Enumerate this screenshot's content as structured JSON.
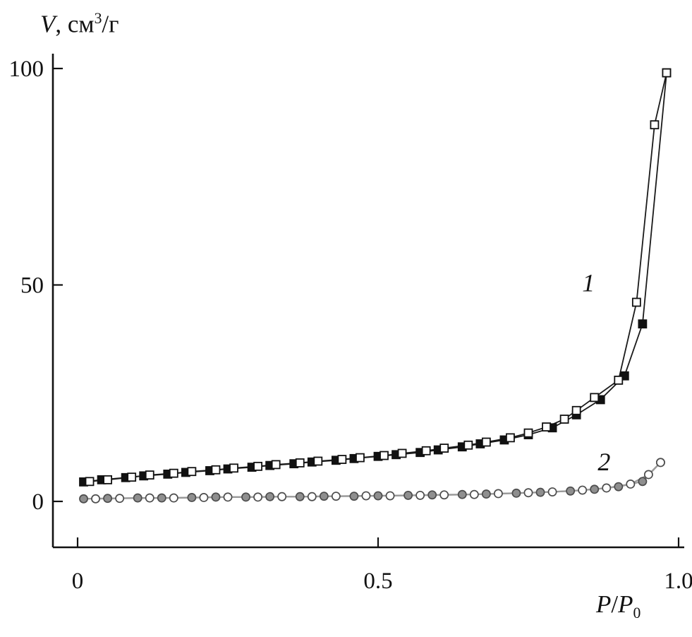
{
  "figure": {
    "ylabel_parts": {
      "var": "V",
      "rest": ", см",
      "sup": "3",
      "after": "/г"
    },
    "xlabel_parts": {
      "var1": "P",
      "slash": "/",
      "var2": "P",
      "sub": "0"
    }
  },
  "chart_data": {
    "type": "line",
    "title": "",
    "ylabel": "V, см³/г",
    "xlabel": "P/P₀",
    "xlim": [
      0,
      1.0
    ],
    "ylim": [
      0,
      100
    ],
    "xticks": [
      0,
      0.5,
      1.0
    ],
    "xtick_labels": [
      "0",
      "0.5",
      "1.0"
    ],
    "yticks": [
      0,
      50,
      100
    ],
    "ytick_labels": [
      "0",
      "50",
      "100"
    ],
    "grid": false,
    "legend": "none",
    "axis_color": "#111111",
    "annotations": [
      {
        "text": "1",
        "x": 0.85,
        "y": 48.5
      },
      {
        "text": "2",
        "x": 0.876,
        "y": 7.2
      }
    ],
    "series": [
      {
        "name": "isotherm-1-adsorption",
        "curve": "1",
        "marker": "square-filled",
        "line_color": "#1a1a1a",
        "line_width": 1.8,
        "marker_fill": "#111111",
        "marker_stroke": "#111111",
        "points": [
          [
            0.01,
            4.5
          ],
          [
            0.04,
            5.0
          ],
          [
            0.08,
            5.5
          ],
          [
            0.11,
            5.9
          ],
          [
            0.15,
            6.3
          ],
          [
            0.18,
            6.7
          ],
          [
            0.22,
            7.1
          ],
          [
            0.25,
            7.5
          ],
          [
            0.29,
            7.9
          ],
          [
            0.32,
            8.3
          ],
          [
            0.36,
            8.7
          ],
          [
            0.39,
            9.1
          ],
          [
            0.43,
            9.5
          ],
          [
            0.46,
            9.9
          ],
          [
            0.5,
            10.4
          ],
          [
            0.53,
            10.8
          ],
          [
            0.57,
            11.3
          ],
          [
            0.6,
            11.9
          ],
          [
            0.64,
            12.6
          ],
          [
            0.67,
            13.3
          ],
          [
            0.71,
            14.2
          ],
          [
            0.75,
            15.4
          ],
          [
            0.79,
            17.0
          ],
          [
            0.83,
            20.0
          ],
          [
            0.87,
            23.5
          ],
          [
            0.91,
            29.0
          ],
          [
            0.94,
            41.0
          ],
          [
            0.98,
            99.0
          ]
        ]
      },
      {
        "name": "isotherm-1-desorption",
        "curve": "1",
        "marker": "square-open",
        "line_color": "#1a1a1a",
        "line_width": 1.8,
        "marker_fill": "#ffffff",
        "marker_stroke": "#111111",
        "points": [
          [
            0.98,
            99.0
          ],
          [
            0.96,
            87.0
          ],
          [
            0.93,
            46.0
          ],
          [
            0.9,
            28.0
          ],
          [
            0.86,
            24.0
          ],
          [
            0.83,
            21.0
          ],
          [
            0.81,
            19.0
          ],
          [
            0.78,
            17.2
          ],
          [
            0.75,
            15.8
          ],
          [
            0.72,
            14.7
          ],
          [
            0.68,
            13.7
          ],
          [
            0.65,
            13.0
          ],
          [
            0.61,
            12.3
          ],
          [
            0.58,
            11.7
          ],
          [
            0.54,
            11.1
          ],
          [
            0.51,
            10.6
          ],
          [
            0.47,
            10.1
          ],
          [
            0.44,
            9.7
          ],
          [
            0.4,
            9.3
          ],
          [
            0.37,
            8.9
          ],
          [
            0.33,
            8.5
          ],
          [
            0.3,
            8.1
          ],
          [
            0.26,
            7.7
          ],
          [
            0.23,
            7.3
          ],
          [
            0.19,
            6.9
          ],
          [
            0.16,
            6.5
          ],
          [
            0.12,
            6.1
          ],
          [
            0.09,
            5.6
          ],
          [
            0.05,
            5.0
          ],
          [
            0.02,
            4.6
          ]
        ]
      },
      {
        "name": "isotherm-2-adsorption",
        "curve": "2",
        "marker": "circle-filled",
        "line_color": "#999999",
        "line_width": 2.2,
        "marker_fill": "#8f8f8f",
        "marker_stroke": "#4d4d4d",
        "points": [
          [
            0.01,
            0.6
          ],
          [
            0.05,
            0.7
          ],
          [
            0.1,
            0.8
          ],
          [
            0.14,
            0.8
          ],
          [
            0.19,
            0.9
          ],
          [
            0.23,
            1.0
          ],
          [
            0.28,
            1.0
          ],
          [
            0.32,
            1.1
          ],
          [
            0.37,
            1.1
          ],
          [
            0.41,
            1.2
          ],
          [
            0.46,
            1.2
          ],
          [
            0.5,
            1.3
          ],
          [
            0.55,
            1.4
          ],
          [
            0.59,
            1.5
          ],
          [
            0.64,
            1.6
          ],
          [
            0.68,
            1.7
          ],
          [
            0.73,
            1.9
          ],
          [
            0.77,
            2.1
          ],
          [
            0.82,
            2.4
          ],
          [
            0.86,
            2.8
          ],
          [
            0.9,
            3.4
          ],
          [
            0.94,
            4.6
          ],
          [
            0.97,
            9.0
          ]
        ]
      },
      {
        "name": "isotherm-2-desorption",
        "curve": "2",
        "marker": "circle-open",
        "line_color": "#999999",
        "line_width": 2.2,
        "marker_fill": "#ffffff",
        "marker_stroke": "#4d4d4d",
        "points": [
          [
            0.97,
            9.0
          ],
          [
            0.95,
            6.2
          ],
          [
            0.92,
            4.0
          ],
          [
            0.88,
            3.1
          ],
          [
            0.84,
            2.6
          ],
          [
            0.79,
            2.2
          ],
          [
            0.75,
            2.0
          ],
          [
            0.7,
            1.8
          ],
          [
            0.66,
            1.6
          ],
          [
            0.61,
            1.5
          ],
          [
            0.57,
            1.4
          ],
          [
            0.52,
            1.3
          ],
          [
            0.48,
            1.3
          ],
          [
            0.43,
            1.2
          ],
          [
            0.39,
            1.1
          ],
          [
            0.34,
            1.1
          ],
          [
            0.3,
            1.0
          ],
          [
            0.25,
            1.0
          ],
          [
            0.21,
            0.9
          ],
          [
            0.16,
            0.8
          ],
          [
            0.12,
            0.8
          ],
          [
            0.07,
            0.7
          ],
          [
            0.03,
            0.6
          ]
        ]
      }
    ]
  }
}
